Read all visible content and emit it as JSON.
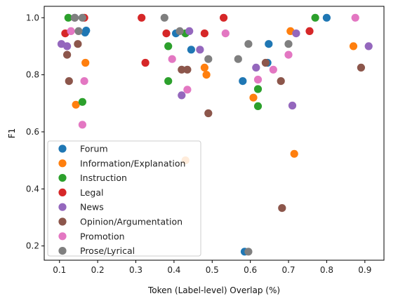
{
  "chart_data": {
    "type": "scatter",
    "xlabel": "Token (Label-level) Overlap (%)",
    "ylabel": "F1",
    "xlim": [
      0.06,
      0.95
    ],
    "ylim": [
      0.15,
      1.04
    ],
    "xticks": [
      0.1,
      0.2,
      0.3,
      0.4,
      0.5,
      0.6,
      0.7,
      0.8,
      0.9
    ],
    "yticks": [
      0.2,
      0.4,
      0.6,
      0.8,
      1.0
    ],
    "grid": false,
    "legend_position": "lower-left",
    "series": [
      {
        "name": "Forum",
        "color": "#1f77b4",
        "points": [
          [
            0.17,
            0.955
          ],
          [
            0.405,
            0.945
          ],
          [
            0.445,
            0.888
          ],
          [
            0.58,
            0.778
          ],
          [
            0.585,
            0.18
          ],
          [
            0.645,
            0.842
          ],
          [
            0.648,
            0.908
          ],
          [
            0.8,
            1.0
          ],
          [
            0.167,
            0.948
          ]
        ]
      },
      {
        "name": "Information/Explanation",
        "color": "#ff7f0e",
        "points": [
          [
            0.143,
            0.695
          ],
          [
            0.168,
            0.842
          ],
          [
            0.43,
            0.5
          ],
          [
            0.48,
            0.825
          ],
          [
            0.485,
            0.8
          ],
          [
            0.608,
            0.72
          ],
          [
            0.705,
            0.953
          ],
          [
            0.715,
            0.523
          ],
          [
            0.87,
            0.9
          ]
        ]
      },
      {
        "name": "Instruction",
        "color": "#2ca02c",
        "points": [
          [
            0.123,
            1.0
          ],
          [
            0.16,
            0.705
          ],
          [
            0.385,
            0.9
          ],
          [
            0.385,
            0.778
          ],
          [
            0.43,
            0.945
          ],
          [
            0.62,
            0.75
          ],
          [
            0.62,
            0.69
          ],
          [
            0.77,
            1.0
          ]
        ]
      },
      {
        "name": "Legal",
        "color": "#d62728",
        "points": [
          [
            0.115,
            0.945
          ],
          [
            0.165,
            1.0
          ],
          [
            0.315,
            1.0
          ],
          [
            0.325,
            0.842
          ],
          [
            0.38,
            0.945
          ],
          [
            0.48,
            0.945
          ],
          [
            0.53,
            1.0
          ],
          [
            0.755,
            0.953
          ]
        ]
      },
      {
        "name": "News",
        "color": "#9467bd",
        "points": [
          [
            0.105,
            0.908
          ],
          [
            0.12,
            0.9
          ],
          [
            0.14,
            1.0
          ],
          [
            0.42,
            0.728
          ],
          [
            0.44,
            0.953
          ],
          [
            0.468,
            0.888
          ],
          [
            0.615,
            0.825
          ],
          [
            0.71,
            0.692
          ],
          [
            0.72,
            0.945
          ],
          [
            0.91,
            0.9
          ]
        ]
      },
      {
        "name": "Opinion/Argumentation",
        "color": "#8c564b",
        "points": [
          [
            0.12,
            0.87
          ],
          [
            0.125,
            0.778
          ],
          [
            0.148,
            0.908
          ],
          [
            0.42,
            0.818
          ],
          [
            0.435,
            0.818
          ],
          [
            0.49,
            0.665
          ],
          [
            0.64,
            0.842
          ],
          [
            0.68,
            0.778
          ],
          [
            0.683,
            0.333
          ],
          [
            0.89,
            0.825
          ]
        ]
      },
      {
        "name": "Promotion",
        "color": "#e377c2",
        "points": [
          [
            0.13,
            0.953
          ],
          [
            0.16,
            0.625
          ],
          [
            0.165,
            0.778
          ],
          [
            0.395,
            0.855
          ],
          [
            0.435,
            0.748
          ],
          [
            0.535,
            0.945
          ],
          [
            0.62,
            0.783
          ],
          [
            0.66,
            0.818
          ],
          [
            0.7,
            0.87
          ],
          [
            0.875,
            1.0
          ]
        ]
      },
      {
        "name": "Prose/Lyrical",
        "color": "#7f7f7f",
        "points": [
          [
            0.14,
            1.0
          ],
          [
            0.15,
            0.953
          ],
          [
            0.16,
            1.0
          ],
          [
            0.375,
            1.0
          ],
          [
            0.415,
            0.953
          ],
          [
            0.49,
            0.855
          ],
          [
            0.568,
            0.855
          ],
          [
            0.595,
            0.908
          ],
          [
            0.595,
            0.18
          ],
          [
            0.7,
            0.908
          ]
        ]
      }
    ]
  }
}
